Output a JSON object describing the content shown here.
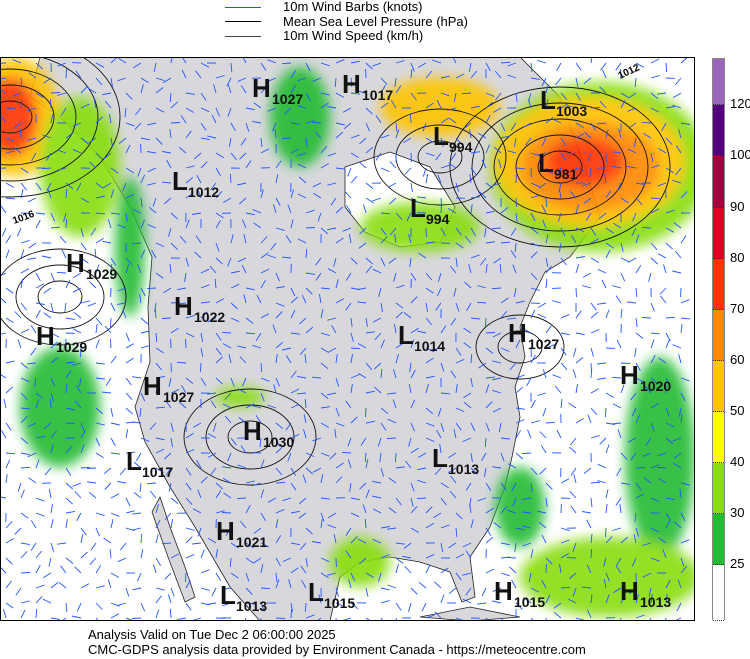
{
  "legend": {
    "items": [
      {
        "label": "10m Wind Barbs  (knots)",
        "color": "#2255ff"
      },
      {
        "label": "Mean Sea Level Pressure (hPa)",
        "color": "#000000"
      },
      {
        "label": "10m Wind Speed (km/h)",
        "color": "#333333"
      }
    ]
  },
  "colorbar": {
    "unit": "km/h",
    "segments": [
      {
        "color": "#9966bb"
      },
      {
        "color": "#55007f"
      },
      {
        "color": "#a3003f"
      },
      {
        "color": "#dd0022"
      },
      {
        "color": "#ff3300"
      },
      {
        "color": "#ff8800"
      },
      {
        "color": "#ffc400"
      },
      {
        "color": "#ffff00"
      },
      {
        "color": "#88dd11"
      },
      {
        "color": "#22bb33"
      },
      {
        "color": "#ffffff"
      }
    ],
    "labels": [
      "120",
      "100",
      "90",
      "80",
      "70",
      "60",
      "50",
      "40",
      "30",
      "25"
    ]
  },
  "pressure_centers": [
    {
      "type": "H",
      "value": "1027"
    },
    {
      "type": "H",
      "value": "1017"
    },
    {
      "type": "L",
      "value": "1003"
    },
    {
      "type": "L",
      "value": "994"
    },
    {
      "type": "L",
      "value": "981"
    },
    {
      "type": "L",
      "value": "1012"
    },
    {
      "type": "L",
      "value": "994"
    },
    {
      "type": "H",
      "value": "1029"
    },
    {
      "type": "H",
      "value": "1022"
    },
    {
      "type": "H",
      "value": "1029"
    },
    {
      "type": "L",
      "value": "1014"
    },
    {
      "type": "H",
      "value": "1027"
    },
    {
      "type": "H",
      "value": "1020"
    },
    {
      "type": "H",
      "value": "1027"
    },
    {
      "type": "H",
      "value": "1030"
    },
    {
      "type": "L",
      "value": "1017"
    },
    {
      "type": "L",
      "value": "1013"
    },
    {
      "type": "H",
      "value": "1021"
    },
    {
      "type": "L",
      "value": "1013"
    },
    {
      "type": "L",
      "value": "1015"
    },
    {
      "type": "H",
      "value": "1015"
    },
    {
      "type": "H",
      "value": "1013"
    }
  ],
  "isobar_labels": [
    "1016",
    "1012"
  ],
  "colors": {
    "land": "#d8d8dc",
    "ocean": "#ffffff",
    "barb": "#2255ff"
  },
  "footer": {
    "valid": "Analysis Valid on Tue Dec  2 06:00:00 2025",
    "credit": "CMC-GDPS analysis data provided by Environment Canada - https://meteocentre.com"
  }
}
